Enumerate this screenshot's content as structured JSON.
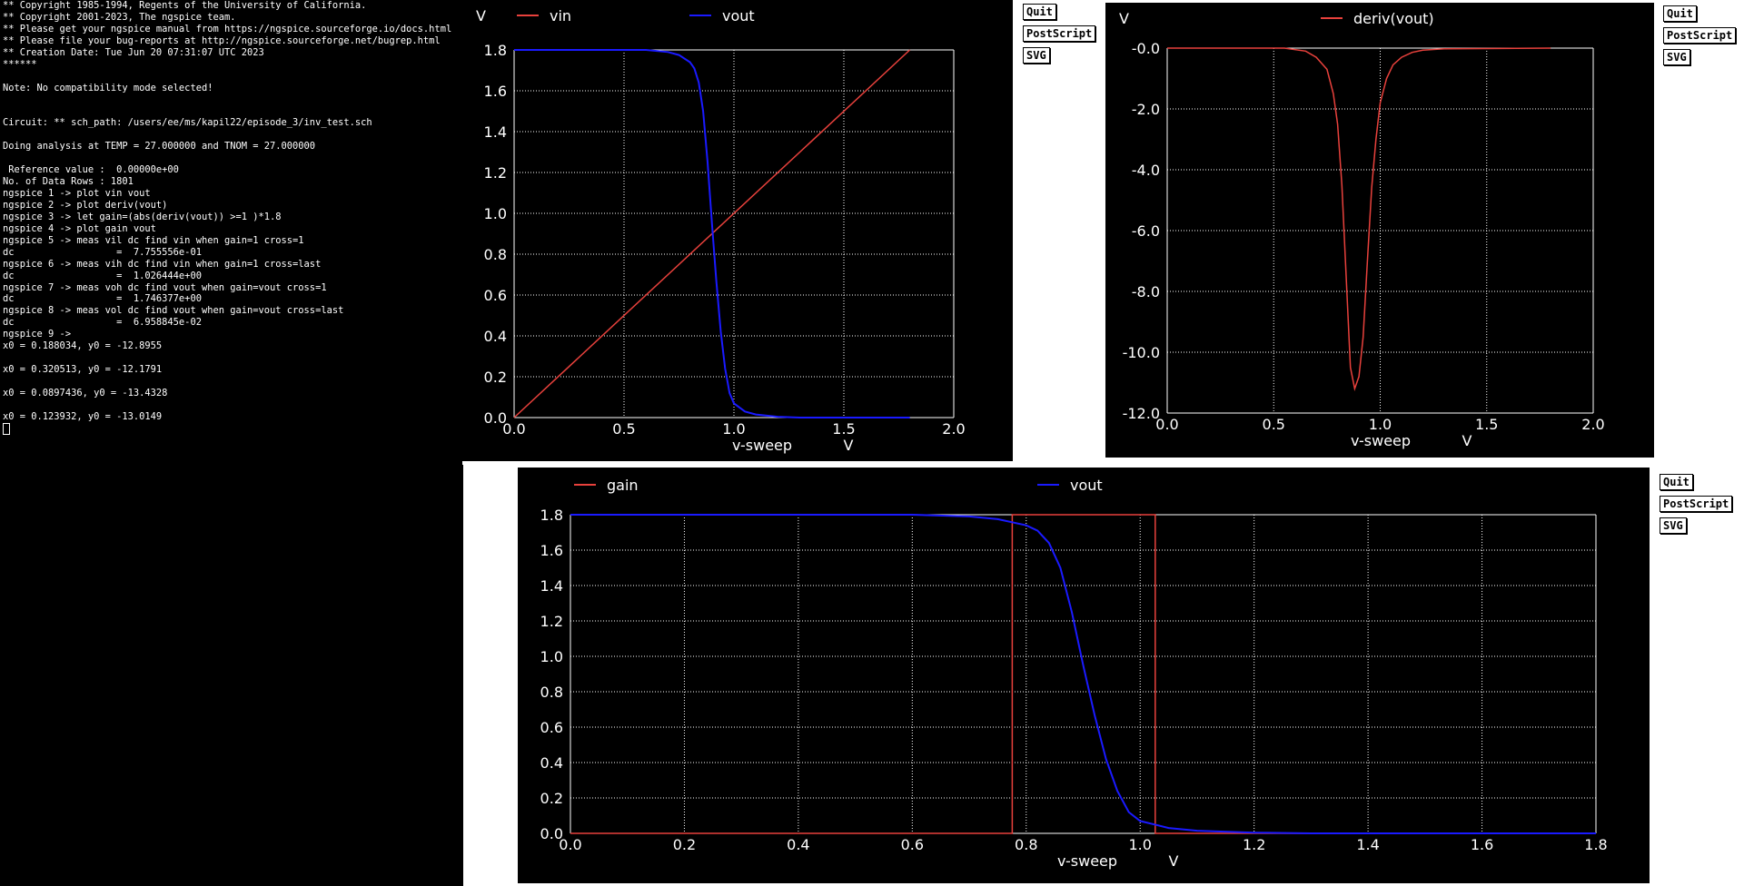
{
  "terminal": {
    "lines": [
      "** Copyright 1985-1994, Regents of the University of California.",
      "** Copyright 2001-2023, The ngspice team.",
      "** Please get your ngspice manual from https://ngspice.sourceforge.io/docs.html",
      "** Please file your bug-reports at http://ngspice.sourceforge.net/bugrep.html",
      "** Creation Date: Tue Jun 20 07:31:07 UTC 2023",
      "******",
      "",
      "Note: No compatibility mode selected!",
      "",
      "",
      "Circuit: ** sch_path: /users/ee/ms/kapil22/episode_3/inv_test.sch",
      "",
      "Doing analysis at TEMP = 27.000000 and TNOM = 27.000000",
      "",
      " Reference value :  0.00000e+00",
      "No. of Data Rows : 1801",
      "ngspice 1 -> plot vin vout",
      "ngspice 2 -> plot deriv(vout)",
      "ngspice 3 -> let gain=(abs(deriv(vout)) >=1 )*1.8",
      "ngspice 4 -> plot gain vout",
      "ngspice 5 -> meas vil dc find vin when gain=1 cross=1",
      "dc                  =  7.755556e-01",
      "ngspice 6 -> meas vih dc find vin when gain=1 cross=last",
      "dc                  =  1.026444e+00",
      "ngspice 7 -> meas voh dc find vout when gain=vout cross=1",
      "dc                  =  1.746377e+00",
      "ngspice 8 -> meas vol dc find vout when gain=vout cross=last",
      "dc                  =  6.958845e-02",
      "ngspice 9 ->",
      "x0 = 0.188034, y0 = -12.8955",
      "",
      "x0 = 0.320513, y0 = -12.1791",
      "",
      "x0 = 0.0897436, y0 = -13.4328",
      "",
      "x0 = 0.123932, y0 = -13.0149"
    ]
  },
  "buttons": {
    "quit": "Quit",
    "postscript": "PostScript",
    "svg": "SVG"
  },
  "colors": {
    "bg": "#000000",
    "grid": "#ffffff",
    "red": "#e8413c",
    "blue": "#1a1aff"
  },
  "chart_data": [
    {
      "type": "line",
      "ylabel_unit": "V",
      "xlabel": "v-sweep",
      "xlabel_unit": "V",
      "xlim": [
        0.0,
        2.0
      ],
      "ylim": [
        0.0,
        1.8
      ],
      "xticks": [
        "0.0",
        "0.5",
        "1.0",
        "1.5",
        "2.0"
      ],
      "yticks": [
        "0.0",
        "0.2",
        "0.4",
        "0.6",
        "0.8",
        "1.0",
        "1.2",
        "1.4",
        "1.6",
        "1.8"
      ],
      "grid": true,
      "series": [
        {
          "name": "vin",
          "color": "red",
          "x": [
            0.0,
            1.8
          ],
          "y": [
            0.0,
            1.8
          ]
        },
        {
          "name": "vout",
          "color": "blue",
          "x": [
            0.0,
            0.6,
            0.7,
            0.75,
            0.8,
            0.82,
            0.84,
            0.86,
            0.88,
            0.9,
            0.92,
            0.94,
            0.96,
            0.98,
            1.0,
            1.05,
            1.1,
            1.2,
            1.3,
            1.8
          ],
          "y": [
            1.8,
            1.8,
            1.79,
            1.775,
            1.74,
            1.71,
            1.64,
            1.5,
            1.25,
            0.95,
            0.67,
            0.42,
            0.24,
            0.12,
            0.07,
            0.03,
            0.015,
            0.004,
            0.0,
            0.0
          ]
        }
      ]
    },
    {
      "type": "line",
      "ylabel_unit": "V",
      "xlabel": "v-sweep",
      "xlabel_unit": "V",
      "xlim": [
        0.0,
        2.0
      ],
      "ylim": [
        -12.0,
        0.0
      ],
      "xticks": [
        "0.0",
        "0.5",
        "1.0",
        "1.5",
        "2.0"
      ],
      "yticks": [
        "-12.0",
        "-10.0",
        "-8.0",
        "-6.0",
        "-4.0",
        "-2.0",
        "-0.0"
      ],
      "grid": true,
      "series": [
        {
          "name": "deriv(vout)",
          "color": "red",
          "x": [
            0.0,
            0.55,
            0.65,
            0.7,
            0.75,
            0.78,
            0.8,
            0.82,
            0.84,
            0.86,
            0.88,
            0.9,
            0.92,
            0.94,
            0.96,
            0.98,
            1.0,
            1.03,
            1.06,
            1.1,
            1.15,
            1.2,
            1.3,
            1.8
          ],
          "y": [
            0.0,
            0.0,
            -0.1,
            -0.3,
            -0.7,
            -1.5,
            -2.5,
            -4.5,
            -7.5,
            -10.5,
            -11.2,
            -10.8,
            -9.5,
            -7.0,
            -4.6,
            -3.0,
            -1.8,
            -1.0,
            -0.55,
            -0.3,
            -0.14,
            -0.07,
            -0.02,
            0.0
          ]
        }
      ]
    },
    {
      "type": "line",
      "xlabel": "v-sweep",
      "xlabel_unit": "V",
      "xlim": [
        0.0,
        1.8
      ],
      "ylim": [
        0.0,
        1.8
      ],
      "xticks": [
        "0.0",
        "0.2",
        "0.4",
        "0.6",
        "0.8",
        "1.0",
        "1.2",
        "1.4",
        "1.6",
        "1.8"
      ],
      "yticks": [
        "0.0",
        "0.2",
        "0.4",
        "0.6",
        "0.8",
        "1.0",
        "1.2",
        "1.4",
        "1.6",
        "1.8"
      ],
      "grid": true,
      "series": [
        {
          "name": "gain",
          "color": "red",
          "x": [
            0.0,
            0.7755,
            0.7755,
            1.0264,
            1.0264,
            1.8
          ],
          "y": [
            0.0,
            0.0,
            1.8,
            1.8,
            0.0,
            0.0
          ]
        },
        {
          "name": "vout",
          "color": "blue",
          "x": [
            0.0,
            0.6,
            0.7,
            0.75,
            0.8,
            0.82,
            0.84,
            0.86,
            0.88,
            0.9,
            0.92,
            0.94,
            0.96,
            0.98,
            1.0,
            1.05,
            1.1,
            1.2,
            1.3,
            1.8
          ],
          "y": [
            1.8,
            1.8,
            1.79,
            1.775,
            1.74,
            1.71,
            1.64,
            1.5,
            1.25,
            0.95,
            0.67,
            0.42,
            0.24,
            0.12,
            0.07,
            0.03,
            0.015,
            0.004,
            0.0,
            0.0
          ]
        }
      ]
    }
  ]
}
